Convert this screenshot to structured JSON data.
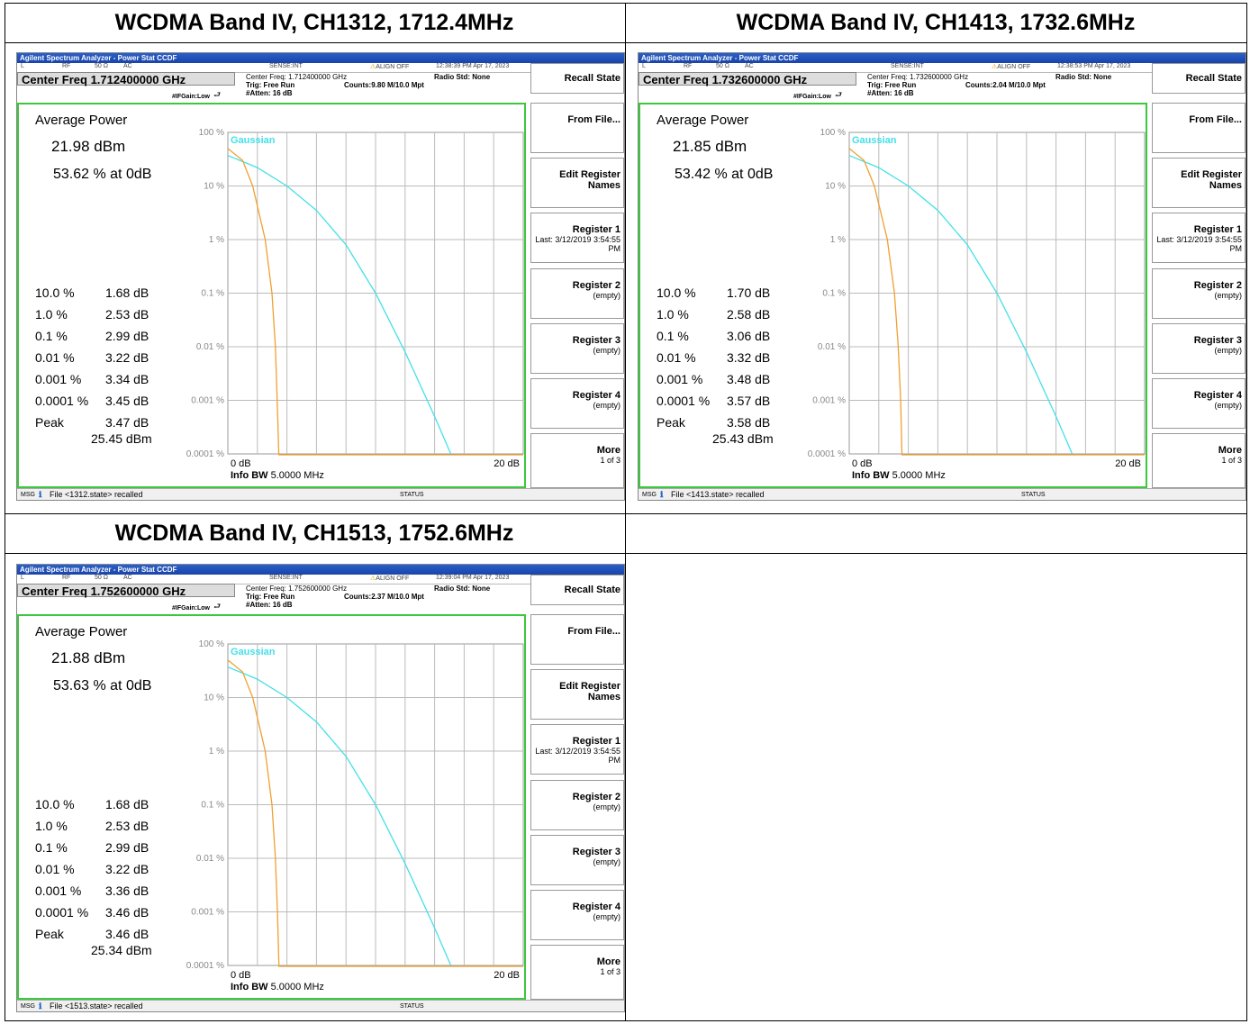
{
  "panels": [
    {
      "title": "WCDMA Band IV, CH1312, 1712.4MHz",
      "window_title": "Agilent Spectrum Analyzer - Power Stat CCDF",
      "topbar": {
        "l": "L",
        "rf": "RF",
        "ohm": "50 Ω",
        "ac": "AC",
        "sense": "SENSE:INT",
        "align": "ALIGN OFF",
        "time": "12:38:39 PM Apr 17, 2023"
      },
      "center_freq": "Center Freq 1.712400000 GHz",
      "info_center": "Center Freq: 1.712400000 GHz",
      "trig": "Trig: Free Run",
      "counts": "Counts:9.80 M/10.0 Mpt",
      "radio_std": "Radio Std: None",
      "ifgain": "#IFGain:Low",
      "atten": "#Atten: 16 dB",
      "average_power_label": "Average Power",
      "average_power_dbm": "21.98 dBm",
      "average_power_pct": "53.62 % at 0dB",
      "stats": [
        {
          "p": "10.0 %",
          "v": "1.68 dB"
        },
        {
          "p": "1.0 %",
          "v": "2.53 dB"
        },
        {
          "p": "0.1 %",
          "v": "2.99 dB"
        },
        {
          "p": "0.01 %",
          "v": "3.22 dB"
        },
        {
          "p": "0.001 %",
          "v": "3.34 dB"
        },
        {
          "p": "0.0001 %",
          "v": "3.45 dB"
        },
        {
          "p": "Peak",
          "v": "3.47 dB"
        }
      ],
      "peak_dbm": "25.45 dBm",
      "gaussian": "Gaussian",
      "y_ticks": [
        "100 %",
        "10 %",
        "1 %",
        "0.1 %",
        "0.01 %",
        "0.001 %",
        "0.0001 %"
      ],
      "x_start": "0 dB",
      "x_end": "20 dB",
      "info_bw_label": "Info BW",
      "info_bw_value": "5.0000 MHz",
      "softkeys": [
        {
          "label": "Recall State",
          "sub": ""
        },
        {
          "label": "From File...",
          "sub": ""
        },
        {
          "label": "Edit Register Names",
          "sub": ""
        },
        {
          "label": "Register 1",
          "sub": "Last: 3/12/2019 3:54:55 PM"
        },
        {
          "label": "Register 2",
          "sub": "(empty)"
        },
        {
          "label": "Register 3",
          "sub": "(empty)"
        },
        {
          "label": "Register 4",
          "sub": "(empty)"
        },
        {
          "label": "More",
          "sub": "1 of 3"
        }
      ],
      "msg_label": "MSG",
      "msg": "File <1312.state> recalled",
      "status": "STATUS",
      "measured_curve": [
        [
          0,
          50
        ],
        [
          1.0,
          30
        ],
        [
          1.68,
          10
        ],
        [
          2.53,
          1
        ],
        [
          2.99,
          0.1
        ],
        [
          3.22,
          0.01
        ],
        [
          3.34,
          0.001
        ],
        [
          3.45,
          0.0001
        ]
      ],
      "gaussian_curve": [
        [
          0,
          37
        ],
        [
          2,
          22
        ],
        [
          4,
          10
        ],
        [
          6,
          3.5
        ],
        [
          8,
          0.8
        ],
        [
          10,
          0.1
        ],
        [
          12,
          0.008
        ],
        [
          14,
          0.0005
        ],
        [
          15.1,
          0.0001
        ]
      ]
    },
    {
      "title": "WCDMA Band IV, CH1413, 1732.6MHz",
      "window_title": "Agilent Spectrum Analyzer - Power Stat CCDF",
      "topbar": {
        "l": "L",
        "rf": "RF",
        "ohm": "50 Ω",
        "ac": "AC",
        "sense": "SENSE:INT",
        "align": "ALIGN OFF",
        "time": "12:38:53 PM Apr 17, 2023"
      },
      "center_freq": "Center Freq 1.732600000 GHz",
      "info_center": "Center Freq: 1.732600000 GHz",
      "trig": "Trig: Free Run",
      "counts": "Counts:2.04 M/10.0 Mpt",
      "radio_std": "Radio Std: None",
      "ifgain": "#IFGain:Low",
      "atten": "#Atten: 16 dB",
      "average_power_label": "Average Power",
      "average_power_dbm": "21.85 dBm",
      "average_power_pct": "53.42 % at 0dB",
      "stats": [
        {
          "p": "10.0 %",
          "v": "1.70 dB"
        },
        {
          "p": "1.0 %",
          "v": "2.58 dB"
        },
        {
          "p": "0.1 %",
          "v": "3.06 dB"
        },
        {
          "p": "0.01 %",
          "v": "3.32 dB"
        },
        {
          "p": "0.001 %",
          "v": "3.48 dB"
        },
        {
          "p": "0.0001 %",
          "v": "3.57 dB"
        },
        {
          "p": "Peak",
          "v": "3.58 dB"
        }
      ],
      "peak_dbm": "25.43 dBm",
      "gaussian": "Gaussian",
      "y_ticks": [
        "100 %",
        "10 %",
        "1 %",
        "0.1 %",
        "0.01 %",
        "0.001 %",
        "0.0001 %"
      ],
      "x_start": "0 dB",
      "x_end": "20 dB",
      "info_bw_label": "Info BW",
      "info_bw_value": "5.0000 MHz",
      "softkeys": [
        {
          "label": "Recall State",
          "sub": ""
        },
        {
          "label": "From File...",
          "sub": ""
        },
        {
          "label": "Edit Register Names",
          "sub": ""
        },
        {
          "label": "Register 1",
          "sub": "Last: 3/12/2019 3:54:55 PM"
        },
        {
          "label": "Register 2",
          "sub": "(empty)"
        },
        {
          "label": "Register 3",
          "sub": "(empty)"
        },
        {
          "label": "Register 4",
          "sub": "(empty)"
        },
        {
          "label": "More",
          "sub": "1 of 3"
        }
      ],
      "msg_label": "MSG",
      "msg": "File <1413.state> recalled",
      "status": "STATUS",
      "measured_curve": [
        [
          0,
          50
        ],
        [
          1.0,
          30
        ],
        [
          1.7,
          10
        ],
        [
          2.58,
          1
        ],
        [
          3.06,
          0.1
        ],
        [
          3.32,
          0.01
        ],
        [
          3.48,
          0.001
        ],
        [
          3.57,
          0.0001
        ]
      ],
      "gaussian_curve": [
        [
          0,
          37
        ],
        [
          2,
          22
        ],
        [
          4,
          10
        ],
        [
          6,
          3.5
        ],
        [
          8,
          0.8
        ],
        [
          10,
          0.1
        ],
        [
          12,
          0.008
        ],
        [
          14,
          0.0005
        ],
        [
          15.1,
          0.0001
        ]
      ]
    },
    {
      "title": "WCDMA Band IV, CH1513, 1752.6MHz",
      "window_title": "Agilent Spectrum Analyzer - Power Stat CCDF",
      "topbar": {
        "l": "L",
        "rf": "RF",
        "ohm": "50 Ω",
        "ac": "AC",
        "sense": "SENSE:INT",
        "align": "ALIGN OFF",
        "time": "12:39:04 PM Apr 17, 2023"
      },
      "center_freq": "Center Freq 1.752600000 GHz",
      "info_center": "Center Freq: 1.752600000 GHz",
      "trig": "Trig: Free Run",
      "counts": "Counts:2.37 M/10.0 Mpt",
      "radio_std": "Radio Std: None",
      "ifgain": "#IFGain:Low",
      "atten": "#Atten: 16 dB",
      "average_power_label": "Average Power",
      "average_power_dbm": "21.88 dBm",
      "average_power_pct": "53.63 % at 0dB",
      "stats": [
        {
          "p": "10.0 %",
          "v": "1.68 dB"
        },
        {
          "p": "1.0 %",
          "v": "2.53 dB"
        },
        {
          "p": "0.1 %",
          "v": "2.99 dB"
        },
        {
          "p": "0.01 %",
          "v": "3.22 dB"
        },
        {
          "p": "0.001 %",
          "v": "3.36 dB"
        },
        {
          "p": "0.0001 %",
          "v": "3.46 dB"
        },
        {
          "p": "Peak",
          "v": "3.46 dB"
        }
      ],
      "peak_dbm": "25.34 dBm",
      "gaussian": "Gaussian",
      "y_ticks": [
        "100 %",
        "10 %",
        "1 %",
        "0.1 %",
        "0.01 %",
        "0.001 %",
        "0.0001 %"
      ],
      "x_start": "0 dB",
      "x_end": "20 dB",
      "info_bw_label": "Info BW",
      "info_bw_value": "5.0000 MHz",
      "softkeys": [
        {
          "label": "Recall State",
          "sub": ""
        },
        {
          "label": "From File...",
          "sub": ""
        },
        {
          "label": "Edit Register Names",
          "sub": ""
        },
        {
          "label": "Register 1",
          "sub": "Last: 3/12/2019 3:54:55 PM"
        },
        {
          "label": "Register 2",
          "sub": "(empty)"
        },
        {
          "label": "Register 3",
          "sub": "(empty)"
        },
        {
          "label": "Register 4",
          "sub": "(empty)"
        },
        {
          "label": "More",
          "sub": "1 of 3"
        }
      ],
      "msg_label": "MSG",
      "msg": "File <1513.state> recalled",
      "status": "STATUS",
      "measured_curve": [
        [
          0,
          50
        ],
        [
          1.0,
          30
        ],
        [
          1.68,
          10
        ],
        [
          2.53,
          1
        ],
        [
          2.99,
          0.1
        ],
        [
          3.22,
          0.01
        ],
        [
          3.36,
          0.001
        ],
        [
          3.46,
          0.0001
        ]
      ],
      "gaussian_curve": [
        [
          0,
          37
        ],
        [
          2,
          22
        ],
        [
          4,
          10
        ],
        [
          6,
          3.5
        ],
        [
          8,
          0.8
        ],
        [
          10,
          0.1
        ],
        [
          12,
          0.008
        ],
        [
          14,
          0.0005
        ],
        [
          15.1,
          0.0001
        ]
      ]
    }
  ],
  "colors": {
    "gaussian": "#44e0e8",
    "measured": "#f0a030",
    "frame": "#3cc83c",
    "titlebar": "#1a44a8"
  }
}
